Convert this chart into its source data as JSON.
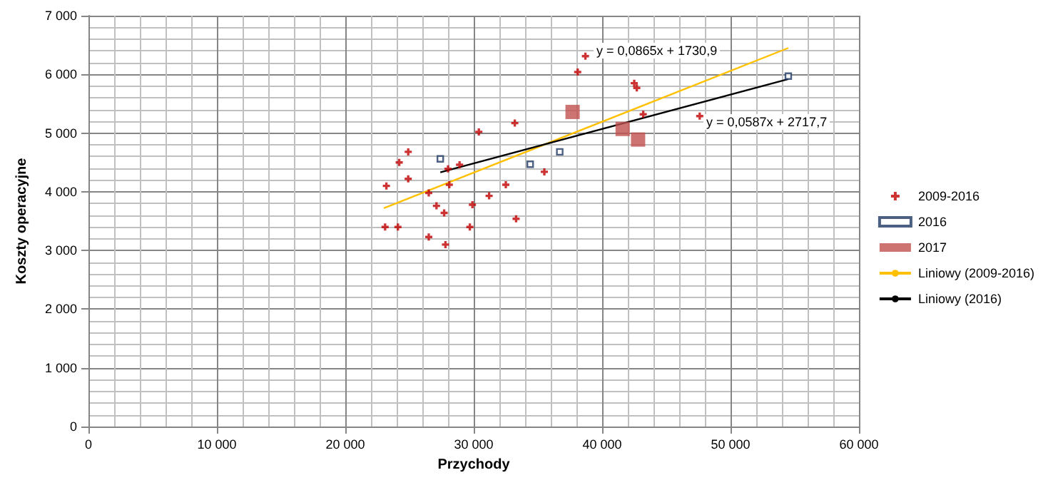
{
  "chart_data": {
    "type": "scatter",
    "xlabel": "Przychody",
    "ylabel": "Koszty operacyjne",
    "xlim": [
      0,
      60000
    ],
    "ylim": [
      0,
      7000
    ],
    "xticks": [
      {
        "value": 0,
        "label": "0"
      },
      {
        "value": 10000,
        "label": "10 000"
      },
      {
        "value": 20000,
        "label": "20 000"
      },
      {
        "value": 30000,
        "label": "30 000"
      },
      {
        "value": 40000,
        "label": "40 000"
      },
      {
        "value": 50000,
        "label": "50 000"
      },
      {
        "value": 60000,
        "label": "60 000"
      }
    ],
    "yticks": [
      {
        "value": 0,
        "label": "0"
      },
      {
        "value": 1000,
        "label": "1 000"
      },
      {
        "value": 2000,
        "label": "2 000"
      },
      {
        "value": 3000,
        "label": "3 000"
      },
      {
        "value": 4000,
        "label": "4 000"
      },
      {
        "value": 5000,
        "label": "5 000"
      },
      {
        "value": 6000,
        "label": "6 000"
      },
      {
        "value": 7000,
        "label": "7 000"
      }
    ],
    "grid": true,
    "legend": "right",
    "annotations": [
      "y = 0,0865x + 1730,9",
      "y = 0,0587x + 2717,7"
    ],
    "series": [
      {
        "name": "2009-2016",
        "color": "#c00000",
        "marker": "cross",
        "x": [
          24900,
          24200,
          24900,
          23200,
          26500,
          28100,
          28000,
          28900,
          27100,
          27700,
          29900,
          29700,
          26500,
          27800,
          23100,
          24100,
          30400,
          33200,
          31200,
          32500,
          33300,
          35500,
          38700,
          38100,
          42500,
          42700,
          43200,
          47600
        ],
        "values": [
          4680,
          4500,
          4220,
          4100,
          3980,
          4120,
          4390,
          4460,
          3760,
          3640,
          3780,
          3400,
          3230,
          3100,
          3400,
          3400,
          5020,
          5170,
          3930,
          4120,
          3540,
          4340,
          6310,
          6040,
          5850,
          5770,
          5320,
          5290
        ]
      },
      {
        "name": "2016",
        "color": "#1f3864",
        "marker": "square",
        "x": [
          27400,
          34400,
          36700,
          54500
        ],
        "values": [
          4560,
          4470,
          4680,
          5970
        ]
      },
      {
        "name": "2017",
        "color": "#c0504d",
        "marker": "square",
        "x": [
          37700,
          41600,
          42800
        ],
        "values": [
          5360,
          5070,
          4890
        ]
      },
      {
        "name": "Liniowy (2009-2016)",
        "type": "line",
        "color": "#ffc000",
        "x": [
          23000,
          54500
        ],
        "values": [
          3720,
          6450
        ]
      },
      {
        "name": "Liniowy (2016)",
        "type": "line",
        "color": "#000000",
        "x": [
          27400,
          54500
        ],
        "values": [
          4330,
          5920
        ]
      }
    ]
  }
}
